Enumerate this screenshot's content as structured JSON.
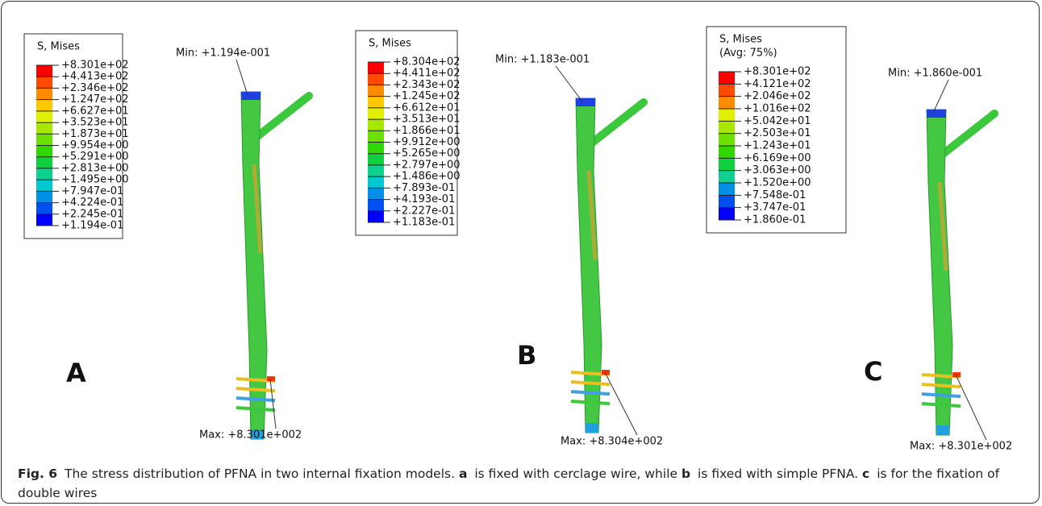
{
  "panels": [
    {
      "label": "A",
      "legend_title": [
        "S, Mises"
      ],
      "legend_values": [
        "+8.301e+02",
        "+4.413e+02",
        "+2.346e+02",
        "+1.247e+02",
        "+6.627e+01",
        "+3.523e+01",
        "+1.873e+01",
        "+9.954e+00",
        "+5.291e+00",
        "+2.813e+00",
        "+1.495e+00",
        "+7.947e-01",
        "+4.224e-01",
        "+2.245e-01",
        "+1.194e-01"
      ],
      "min": "Min: +1.194e-001",
      "max": "Max: +8.301e+002"
    },
    {
      "label": "B",
      "legend_title": [
        "S, Mises"
      ],
      "legend_values": [
        "+8.304e+02",
        "+4.411e+02",
        "+2.343e+02",
        "+1.245e+02",
        "+6.612e+01",
        "+3.513e+01",
        "+1.866e+01",
        "+9.912e+00",
        "+5.265e+00",
        "+2.797e+00",
        "+1.486e+00",
        "+7.893e-01",
        "+4.193e-01",
        "+2.227e-01",
        "+1.183e-01"
      ],
      "min": "Min: +1.183e-001",
      "max": "Max: +8.304e+002"
    },
    {
      "label": "C",
      "legend_title": [
        "S, Mises",
        "(Avg: 75%)"
      ],
      "legend_values": [
        "+8.301e+02",
        "+4.121e+02",
        "+2.046e+02",
        "+1.016e+02",
        "+5.042e+01",
        "+2.503e+01",
        "+1.243e+01",
        "+6.169e+00",
        "+3.063e+00",
        "+1.520e+00",
        "+7.548e-01",
        "+3.747e-01",
        "+1.860e-01"
      ],
      "min": "Min: +1.860e-001",
      "max": "Max: +8.301e+002"
    }
  ],
  "caption": {
    "fig": "Fig. 6",
    "parts": [
      "The stress distribution of PFNA in two internal fixation models.",
      "a",
      "is fixed with cerclage wire, while",
      "b",
      "is fixed with simple PFNA.",
      "c",
      "is for the fixation of double wires"
    ]
  }
}
